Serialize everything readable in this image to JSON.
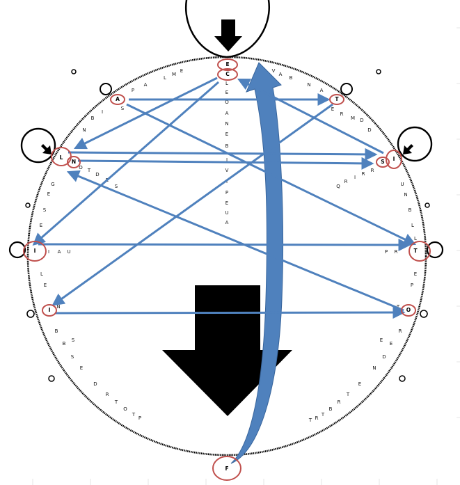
{
  "colors": {
    "arrow": "#4f81bd",
    "ring": "#c0504d",
    "outline": "#000000",
    "background": "#ffffff"
  },
  "nodes": {
    "E": "E",
    "C": "C",
    "A": "A",
    "T_top": "T",
    "L": "L",
    "N_left": "N",
    "S_right": "S",
    "I_right": "I",
    "I_left": "I",
    "T_right": "T",
    "I_lower": "I",
    "O": "O",
    "F": "F"
  },
  "ring_letters": {
    "upper_left": [
      "E",
      "M",
      "L",
      "A",
      "P"
    ],
    "left_side": [
      "I",
      "B",
      "N"
    ],
    "below_a": "S",
    "below_ln": [
      "O",
      "T",
      "D",
      "E",
      "S"
    ],
    "left_mid": [
      "G",
      "E",
      "S",
      "E"
    ],
    "after_i_left": [
      "I",
      "A",
      "U"
    ],
    "left_lower": [
      "L",
      "E"
    ],
    "after_i_lower": "N",
    "bottom_left": [
      "B",
      "B",
      "S",
      "S",
      "E",
      "D",
      "R",
      "T",
      "O",
      "T",
      "P"
    ],
    "upper_right": [
      "V",
      "A",
      "B",
      "N",
      "A"
    ],
    "below_t_top": [
      "E",
      "R",
      "M",
      "D",
      "D"
    ],
    "inner_right": [
      "R",
      "R",
      "I",
      "R",
      "Q"
    ],
    "right_side": [
      "U",
      "N",
      "B",
      "L",
      "L"
    ],
    "before_t_right": [
      "P",
      "R"
    ],
    "below_t_right": [
      "E",
      "P"
    ],
    "around_o": [
      "T",
      "R",
      "E",
      "D",
      "E",
      "N"
    ],
    "bottom_right": [
      "E",
      "T",
      "R",
      "B",
      "T",
      "R",
      "T"
    ],
    "center_column": [
      "L",
      "E",
      "O",
      "A",
      "N",
      "E",
      "B",
      "I",
      "V",
      "I",
      "P",
      "E",
      "U",
      "A"
    ]
  }
}
